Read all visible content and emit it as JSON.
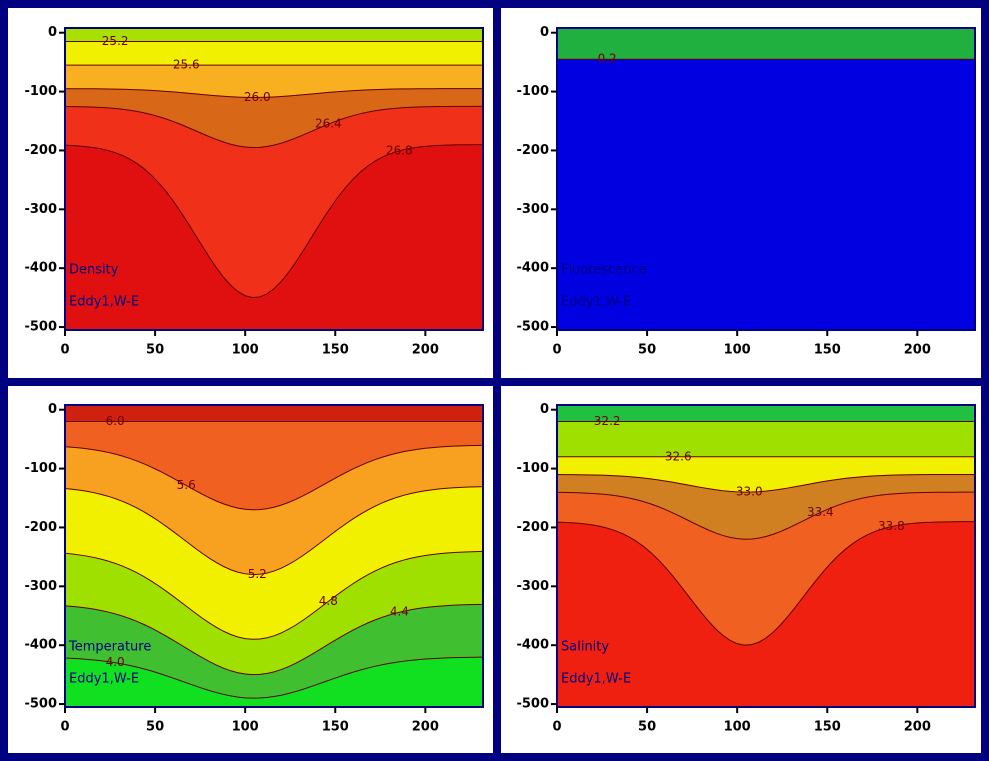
{
  "chart_data": [
    {
      "type": "contour",
      "title": "Density",
      "subtitle": "Eddy1,W-E",
      "xlim": [
        0,
        232
      ],
      "ylim": [
        -505,
        8
      ],
      "xticks": [
        0,
        50,
        100,
        150,
        200
      ],
      "yticks": [
        0,
        -100,
        -200,
        -300,
        -400,
        -500
      ],
      "levels": [
        25.2,
        25.6,
        {
          "value": 26,
          "label": "26.0"
        },
        26.4,
        26.8
      ],
      "colors": [
        "#a8e000",
        "#f0f000",
        "#f8b020",
        "#d86818",
        "#f03018",
        "#e01010"
      ]
    },
    {
      "type": "contour",
      "title": "Fluorescence",
      "subtitle": "Eddy1,W-E",
      "xlim": [
        0,
        232
      ],
      "ylim": [
        -505,
        8
      ],
      "xticks": [
        0,
        50,
        100,
        150,
        200
      ],
      "yticks": [
        0,
        -100,
        -200,
        -300,
        -400,
        -500
      ],
      "levels": [
        0.2
      ],
      "colors": [
        "#20b040",
        "#0000e0"
      ]
    },
    {
      "type": "contour",
      "title": "Temperature",
      "subtitle": "Eddy1,W-E",
      "xlim": [
        0,
        232
      ],
      "ylim": [
        -505,
        8
      ],
      "xticks": [
        0,
        50,
        100,
        150,
        200
      ],
      "yticks": [
        0,
        -100,
        -200,
        -300,
        -400,
        -500
      ],
      "levels": [
        {
          "value": 6,
          "label": "6.0"
        },
        5.6,
        5.2,
        4.8,
        4.4,
        {
          "value": 4,
          "label": "4.0"
        }
      ],
      "colors": [
        "#d02010",
        "#f06020",
        "#f8a020",
        "#f0f000",
        "#a0e000",
        "#40c030",
        "#10e020"
      ]
    },
    {
      "type": "contour",
      "title": "Salinity",
      "subtitle": "Eddy1,W-E",
      "xlim": [
        0,
        232
      ],
      "ylim": [
        -505,
        8
      ],
      "xticks": [
        0,
        50,
        100,
        150,
        200
      ],
      "yticks": [
        0,
        -100,
        -200,
        -300,
        -400,
        -500
      ],
      "levels": [
        32.2,
        32.6,
        {
          "value": 33,
          "label": "33.0"
        },
        33.4,
        33.8
      ],
      "colors": [
        "#20c040",
        "#a0e000",
        "#f0f000",
        "#d08020",
        "#f06020",
        "#f02010"
      ]
    }
  ]
}
